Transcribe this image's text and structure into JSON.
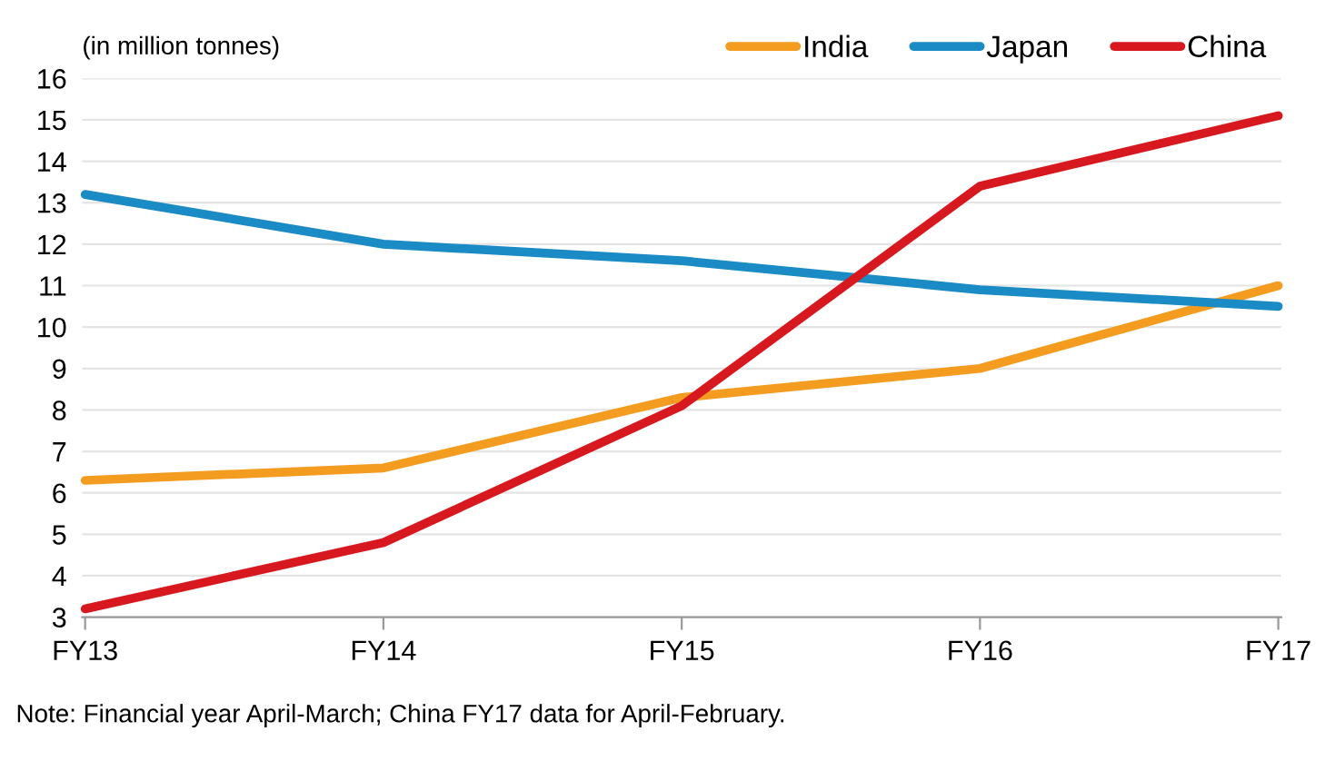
{
  "chart_data": {
    "type": "line",
    "ylabel": "(in million tonnes)",
    "categories": [
      "FY13",
      "FY14",
      "FY15",
      "FY16",
      "FY17"
    ],
    "series": [
      {
        "name": "India",
        "color": "#f39c1f",
        "values": [
          6.3,
          6.6,
          8.3,
          9.0,
          11.0
        ]
      },
      {
        "name": "Japan",
        "color": "#1a8bc4",
        "values": [
          13.2,
          12.0,
          11.6,
          10.9,
          10.5
        ]
      },
      {
        "name": "China",
        "color": "#d7191f",
        "values": [
          3.2,
          4.8,
          8.1,
          13.4,
          15.1
        ]
      }
    ],
    "ylim": [
      3,
      16
    ],
    "yticks": [
      3,
      4,
      5,
      6,
      7,
      8,
      9,
      10,
      11,
      12,
      13,
      14,
      15,
      16
    ],
    "grid": "y",
    "legend": "top right",
    "marker": "none",
    "line_style": "solid",
    "annotations": [
      "Note: Financial year April-March; China FY17 data for April-February."
    ]
  }
}
